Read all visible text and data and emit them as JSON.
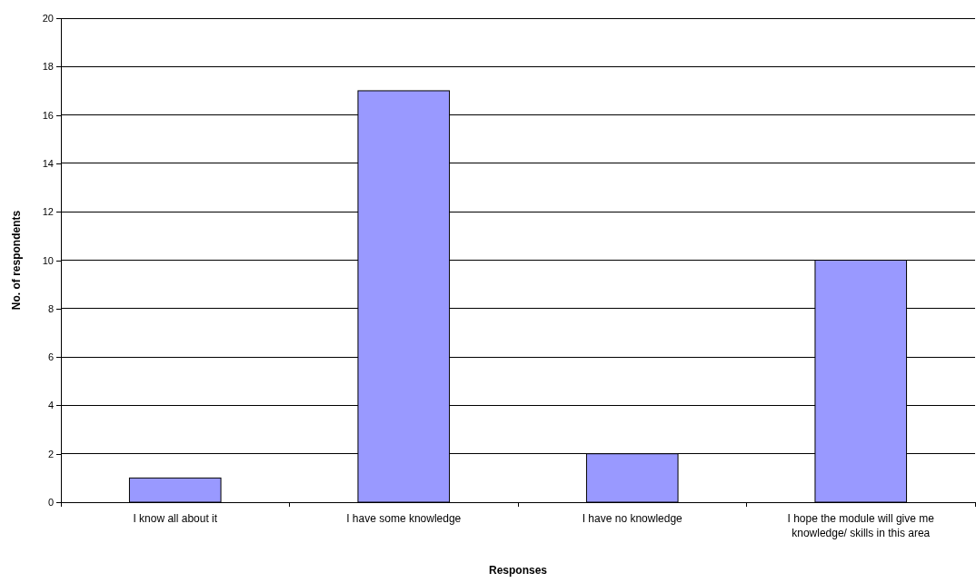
{
  "chart_data": {
    "type": "bar",
    "xlabel": "Responses",
    "ylabel": "No. of respondents",
    "categories": [
      "I know all about it",
      "I have some knowledge",
      "I have no knowledge",
      "I hope the module will give me knowledge/ skills in this area"
    ],
    "values": [
      1,
      17,
      2,
      10
    ],
    "color": "#9999ff",
    "ylim": [
      0,
      20
    ],
    "yticks": [
      0,
      2,
      4,
      6,
      8,
      10,
      12,
      14,
      16,
      18,
      20
    ],
    "grid": "y"
  }
}
